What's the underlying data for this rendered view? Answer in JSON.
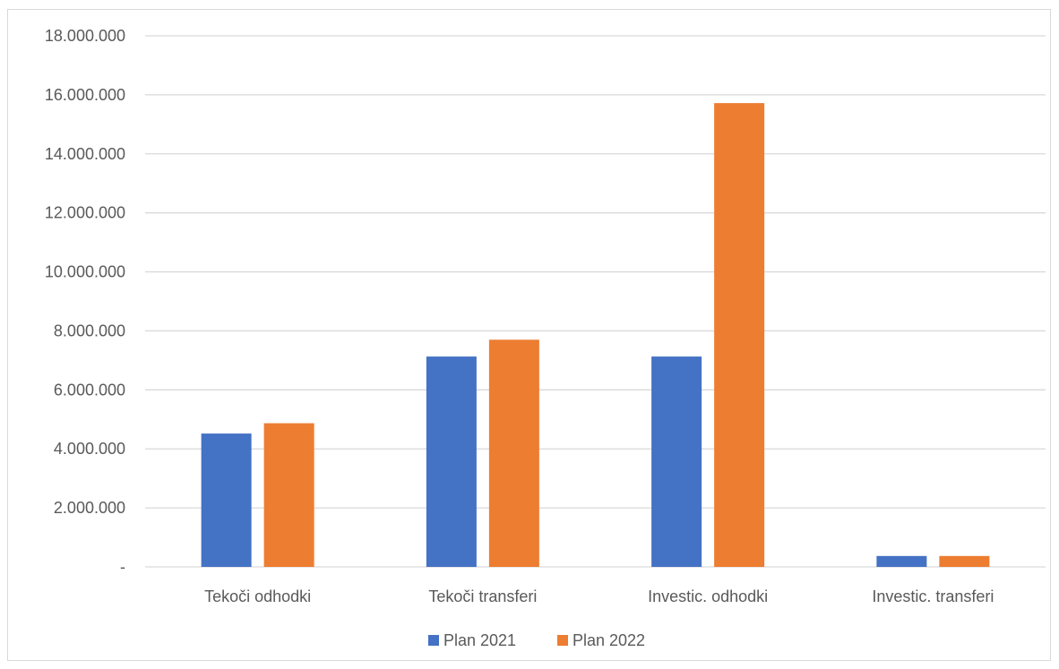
{
  "chart_data": {
    "type": "bar",
    "title": "",
    "xlabel": "",
    "ylabel": "",
    "categories": [
      "Tekoči odhodki",
      "Tekoči transferi",
      "Investic. odhodki",
      "Investic. transferi"
    ],
    "series": [
      {
        "name": "Plan 2021",
        "color": "#4472c4",
        "values": [
          4520000,
          7130000,
          7130000,
          370000
        ]
      },
      {
        "name": "Plan 2022",
        "color": "#ed7d31",
        "values": [
          4870000,
          7700000,
          15720000,
          370000
        ]
      }
    ],
    "ylim": [
      0,
      18000000
    ],
    "y_ticks": [
      {
        "value": 0,
        "label": "-"
      },
      {
        "value": 2000000,
        "label": "2.000.000"
      },
      {
        "value": 4000000,
        "label": "4.000.000"
      },
      {
        "value": 6000000,
        "label": "6.000.000"
      },
      {
        "value": 8000000,
        "label": "8.000.000"
      },
      {
        "value": 10000000,
        "label": "10.000.000"
      },
      {
        "value": 12000000,
        "label": "12.000.000"
      },
      {
        "value": 14000000,
        "label": "14.000.000"
      },
      {
        "value": 16000000,
        "label": "16.000.000"
      },
      {
        "value": 18000000,
        "label": "18.000.000"
      }
    ],
    "grid": true,
    "gridline_color": "#d9d9d9",
    "legend_position": "bottom"
  }
}
